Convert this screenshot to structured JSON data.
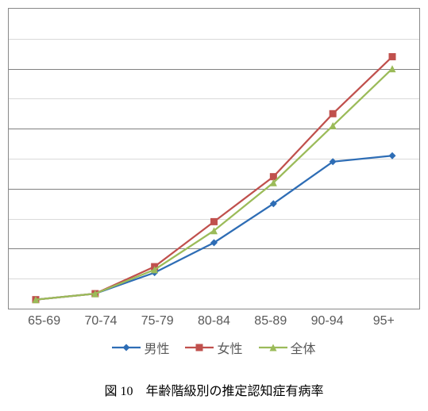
{
  "chart": {
    "type": "line",
    "caption": "図 10　年齢階級別の推定認知症有病率",
    "categories": [
      "65-69",
      "70-74",
      "75-79",
      "80-84",
      "85-89",
      "90-94",
      "95+"
    ],
    "ylim": [
      0,
      100
    ],
    "ytick_step": 10,
    "plot_area_border_color": "#888888",
    "background_color": "#ffffff",
    "grid_major_color": "#808080",
    "grid_minor_color": "#d9d9d9",
    "axis_label_fontsize": 16,
    "axis_label_color": "#595959",
    "caption_fontsize": 16,
    "series": [
      {
        "name": "男性",
        "color": "#2e6db5",
        "marker": "diamond",
        "marker_size": 9,
        "line_width": 2.25,
        "values": [
          3,
          5,
          12,
          22,
          35,
          49,
          51
        ]
      },
      {
        "name": "女性",
        "color": "#c0504d",
        "marker": "square",
        "marker_size": 9,
        "line_width": 2.25,
        "values": [
          3,
          5,
          14,
          29,
          44,
          65,
          84
        ]
      },
      {
        "name": "全体",
        "color": "#9bbb59",
        "marker": "triangle",
        "marker_size": 9,
        "line_width": 2.25,
        "values": [
          3,
          5,
          13,
          26,
          42,
          61,
          80
        ]
      }
    ],
    "legend_fontsize": 16
  }
}
